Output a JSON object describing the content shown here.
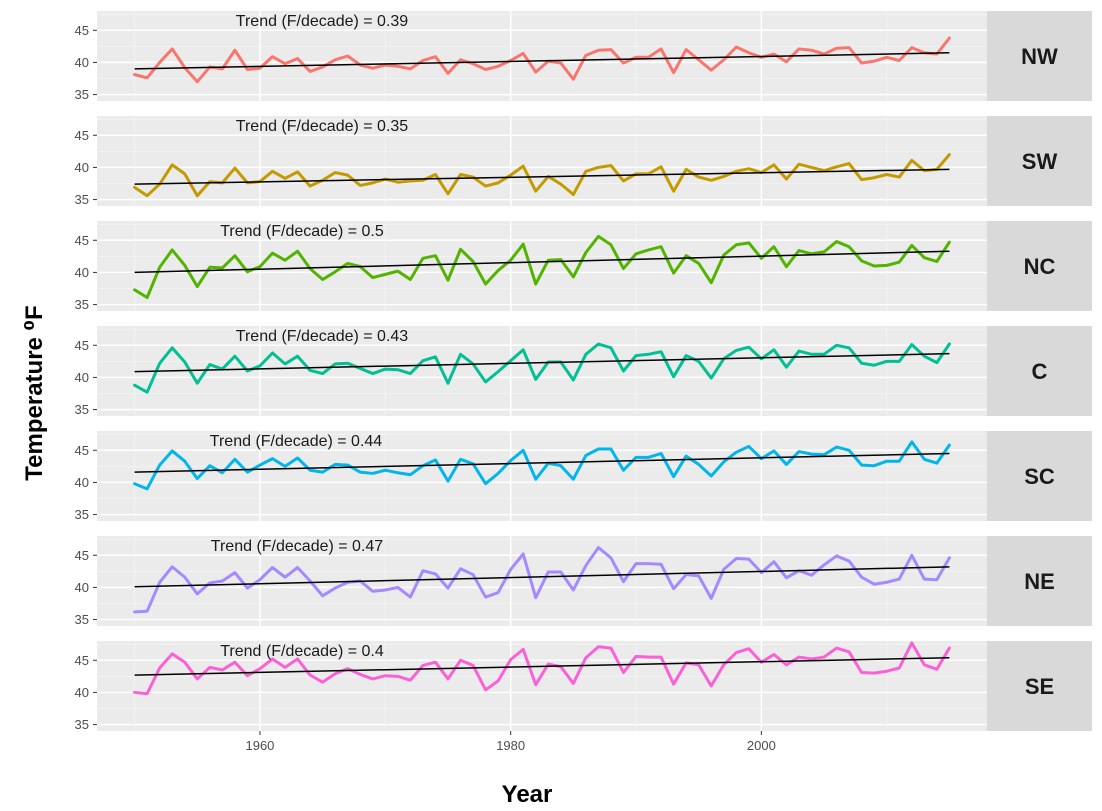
{
  "chart_data": {
    "type": "line",
    "xlabel": "Year",
    "ylabel": "Temperature ⁰F",
    "x_start": 1950,
    "x_end": 2015,
    "xlim": [
      1947,
      2018
    ],
    "x_ticks": [
      1960,
      1980,
      2000
    ],
    "ylim": [
      34,
      48
    ],
    "y_ticks": [
      35,
      40,
      45
    ],
    "grid": true,
    "trend_prefix": "Trend (F/decade) = ",
    "panels": [
      {
        "name": "NW",
        "color": "#F8766D",
        "trend_text": "Trend (F/decade) = 0.39",
        "trend_line": [
          39.0,
          41.5
        ],
        "values": [
          38.1,
          37.6,
          40.0,
          42.1,
          39.2,
          37.0,
          39.3,
          39.0,
          41.9,
          38.9,
          39.1,
          40.9,
          39.8,
          40.6,
          38.6,
          39.3,
          40.4,
          41.0,
          39.6,
          39.1,
          39.6,
          39.4,
          39.0,
          40.3,
          40.9,
          38.3,
          40.4,
          39.8,
          38.9,
          39.4,
          40.3,
          41.4,
          38.5,
          40.2,
          39.9,
          37.4,
          41.1,
          41.9,
          42.0,
          39.9,
          40.8,
          40.8,
          42.1,
          38.4,
          42.0,
          40.4,
          38.8,
          40.4,
          42.4,
          41.5,
          40.8,
          41.3,
          40.1,
          42.1,
          41.9,
          41.3,
          42.2,
          42.3,
          39.9,
          40.2,
          40.8,
          40.3,
          42.3,
          41.5,
          41.3,
          43.8
        ]
      },
      {
        "name": "SW",
        "color": "#C49A00",
        "trend_text": "Trend (F/decade) =  0.35",
        "trend_line": [
          37.4,
          39.7
        ],
        "values": [
          36.9,
          35.6,
          37.4,
          40.4,
          39.0,
          35.6,
          37.8,
          37.6,
          39.9,
          37.6,
          37.8,
          39.4,
          38.3,
          39.3,
          37.1,
          38.0,
          39.2,
          38.8,
          37.2,
          37.6,
          38.2,
          37.7,
          37.9,
          38.0,
          38.9,
          35.9,
          38.9,
          38.5,
          37.1,
          37.6,
          38.8,
          40.2,
          36.3,
          38.6,
          37.4,
          35.8,
          39.4,
          40.0,
          40.3,
          37.9,
          39.0,
          39.0,
          40.1,
          36.3,
          39.7,
          38.5,
          38.0,
          38.6,
          39.4,
          39.8,
          39.2,
          40.4,
          38.2,
          40.5,
          40.0,
          39.5,
          40.1,
          40.6,
          38.1,
          38.4,
          38.9,
          38.5,
          41.1,
          39.5,
          39.7,
          42.0
        ]
      },
      {
        "name": "NC",
        "color": "#53B400",
        "trend_text": "Trend (F/decade) =  0.5",
        "trend_line": [
          40.0,
          43.3
        ],
        "values": [
          37.3,
          36.1,
          40.8,
          43.5,
          41.1,
          37.8,
          40.8,
          40.7,
          42.6,
          40.1,
          40.9,
          43.0,
          41.9,
          43.3,
          40.6,
          38.9,
          40.1,
          41.4,
          40.9,
          39.2,
          39.7,
          40.2,
          38.9,
          42.2,
          42.6,
          38.8,
          43.6,
          41.7,
          38.2,
          40.3,
          41.9,
          44.4,
          38.2,
          41.9,
          42.0,
          39.3,
          43.1,
          45.6,
          44.3,
          40.6,
          42.9,
          43.5,
          44.0,
          39.9,
          42.6,
          41.4,
          38.4,
          42.7,
          44.3,
          44.6,
          42.2,
          44.0,
          40.9,
          43.4,
          42.9,
          43.2,
          44.8,
          44.0,
          41.8,
          41.0,
          41.1,
          41.6,
          44.2,
          42.3,
          41.7,
          44.7
        ]
      },
      {
        "name": "C",
        "color": "#00C094",
        "trend_text": "Trend (F/decade) = 0.43",
        "trend_line": [
          40.9,
          43.7
        ],
        "values": [
          38.8,
          37.7,
          42.2,
          44.6,
          42.4,
          39.1,
          42.0,
          41.3,
          43.3,
          41.0,
          41.8,
          43.8,
          42.1,
          43.3,
          41.1,
          40.6,
          42.1,
          42.2,
          41.4,
          40.6,
          41.3,
          41.2,
          40.6,
          42.6,
          43.2,
          39.1,
          43.6,
          42.1,
          39.3,
          40.9,
          42.6,
          44.3,
          39.7,
          42.4,
          42.4,
          39.6,
          43.6,
          45.2,
          44.6,
          41.0,
          43.4,
          43.6,
          44.0,
          40.1,
          43.4,
          42.5,
          39.9,
          42.9,
          44.2,
          44.7,
          42.9,
          44.3,
          41.6,
          44.1,
          43.6,
          43.6,
          45.0,
          44.6,
          42.2,
          41.9,
          42.5,
          42.5,
          45.1,
          43.3,
          42.3,
          45.2
        ]
      },
      {
        "name": "SC",
        "color": "#00B6EB",
        "trend_text": "Trend (F/decade) =  0.44",
        "trend_line": [
          41.6,
          44.5
        ],
        "values": [
          39.8,
          39.0,
          42.7,
          44.9,
          43.3,
          40.6,
          42.6,
          41.5,
          43.6,
          41.6,
          42.7,
          43.7,
          42.5,
          43.8,
          41.9,
          41.6,
          42.8,
          42.7,
          41.6,
          41.4,
          41.9,
          41.5,
          41.2,
          42.6,
          43.5,
          40.2,
          43.6,
          42.9,
          39.8,
          41.4,
          43.4,
          45.0,
          40.5,
          43.0,
          42.6,
          40.5,
          44.2,
          45.2,
          45.2,
          41.9,
          43.9,
          43.9,
          44.5,
          40.9,
          44.1,
          42.8,
          41.0,
          43.2,
          44.7,
          45.6,
          43.7,
          44.9,
          42.8,
          44.8,
          44.4,
          44.3,
          45.5,
          45.0,
          42.7,
          42.6,
          43.3,
          43.3,
          46.3,
          43.6,
          43.0,
          45.8
        ]
      },
      {
        "name": "NE",
        "color": "#A58AFF",
        "trend_text": "Trend (F/decade) =  0.47",
        "trend_line": [
          40.1,
          43.2
        ],
        "values": [
          36.2,
          36.3,
          40.8,
          43.2,
          41.6,
          39.0,
          40.7,
          41.0,
          42.3,
          39.9,
          41.2,
          43.1,
          41.6,
          43.1,
          41.0,
          38.7,
          39.9,
          40.8,
          41.0,
          39.4,
          39.6,
          40.0,
          38.5,
          42.6,
          42.1,
          39.9,
          42.9,
          42.0,
          38.5,
          39.2,
          42.8,
          45.2,
          38.4,
          42.4,
          42.4,
          39.6,
          43.4,
          46.2,
          44.6,
          40.9,
          43.7,
          43.7,
          43.6,
          39.8,
          42.0,
          41.8,
          38.3,
          42.8,
          44.5,
          44.4,
          42.3,
          44.0,
          41.5,
          42.6,
          41.9,
          43.5,
          44.9,
          44.1,
          41.6,
          40.5,
          40.8,
          41.3,
          45.0,
          41.3,
          41.2,
          44.6
        ]
      },
      {
        "name": "SE",
        "color": "#FB61D7",
        "trend_text": "Trend (F/decade) =  0.4",
        "trend_line": [
          42.7,
          45.4
        ],
        "values": [
          40.0,
          39.8,
          43.8,
          46.0,
          44.7,
          42.1,
          43.9,
          43.5,
          44.7,
          42.6,
          43.7,
          45.2,
          43.9,
          45.2,
          42.7,
          41.6,
          42.9,
          43.7,
          42.8,
          42.1,
          42.6,
          42.5,
          41.9,
          44.2,
          44.7,
          42.1,
          45.0,
          44.2,
          40.4,
          41.8,
          45.1,
          46.7,
          41.2,
          44.4,
          44.0,
          41.4,
          45.4,
          47.1,
          46.9,
          43.1,
          45.6,
          45.5,
          45.5,
          41.3,
          44.6,
          44.3,
          41.0,
          44.3,
          46.2,
          46.8,
          44.7,
          45.9,
          44.3,
          45.5,
          45.2,
          45.5,
          46.9,
          46.3,
          43.1,
          43.0,
          43.3,
          43.8,
          47.7,
          44.3,
          43.6,
          46.9
        ]
      }
    ]
  }
}
